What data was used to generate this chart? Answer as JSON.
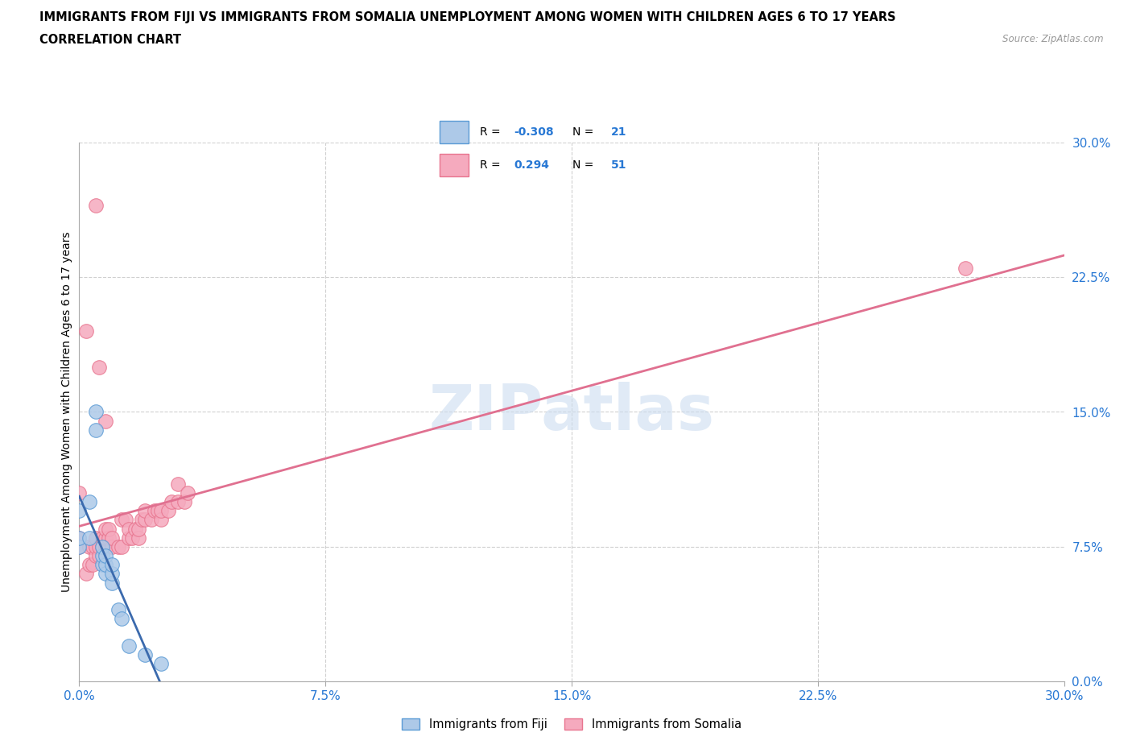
{
  "title_line1": "IMMIGRANTS FROM FIJI VS IMMIGRANTS FROM SOMALIA UNEMPLOYMENT AMONG WOMEN WITH CHILDREN AGES 6 TO 17 YEARS",
  "title_line2": "CORRELATION CHART",
  "source": "Source: ZipAtlas.com",
  "ylabel": "Unemployment Among Women with Children Ages 6 to 17 years",
  "x_min": 0.0,
  "x_max": 0.3,
  "y_min": 0.0,
  "y_max": 0.3,
  "grid_color": "#d0d0d0",
  "watermark": "ZIPatlas",
  "fiji_color": "#adc9e8",
  "somalia_color": "#f5aabe",
  "fiji_edge_color": "#5b9bd5",
  "somalia_edge_color": "#e8758f",
  "fiji_R": -0.308,
  "fiji_N": 21,
  "somalia_R": 0.294,
  "somalia_N": 51,
  "fiji_line_color": "#3b6aad",
  "somalia_line_color": "#e07090",
  "tick_color": "#2878d4",
  "fiji_x": [
    0.0,
    0.0,
    0.0,
    0.003,
    0.003,
    0.005,
    0.005,
    0.007,
    0.007,
    0.007,
    0.008,
    0.008,
    0.008,
    0.01,
    0.01,
    0.01,
    0.012,
    0.013,
    0.015,
    0.02,
    0.025
  ],
  "fiji_y": [
    0.075,
    0.08,
    0.095,
    0.08,
    0.1,
    0.14,
    0.15,
    0.065,
    0.07,
    0.075,
    0.06,
    0.065,
    0.07,
    0.055,
    0.06,
    0.065,
    0.04,
    0.035,
    0.02,
    0.015,
    0.01
  ],
  "somalia_x": [
    0.0,
    0.0,
    0.0,
    0.002,
    0.003,
    0.003,
    0.004,
    0.004,
    0.005,
    0.005,
    0.005,
    0.006,
    0.006,
    0.007,
    0.007,
    0.008,
    0.008,
    0.008,
    0.009,
    0.009,
    0.01,
    0.01,
    0.012,
    0.013,
    0.013,
    0.014,
    0.015,
    0.015,
    0.016,
    0.017,
    0.018,
    0.018,
    0.019,
    0.02,
    0.02,
    0.022,
    0.023,
    0.024,
    0.025,
    0.025,
    0.027,
    0.028,
    0.03,
    0.03,
    0.032,
    0.033,
    0.27,
    0.002,
    0.005,
    0.006,
    0.008
  ],
  "somalia_y": [
    0.075,
    0.08,
    0.105,
    0.06,
    0.065,
    0.075,
    0.065,
    0.075,
    0.07,
    0.075,
    0.08,
    0.07,
    0.075,
    0.075,
    0.08,
    0.075,
    0.08,
    0.085,
    0.08,
    0.085,
    0.075,
    0.08,
    0.075,
    0.075,
    0.09,
    0.09,
    0.08,
    0.085,
    0.08,
    0.085,
    0.08,
    0.085,
    0.09,
    0.09,
    0.095,
    0.09,
    0.095,
    0.095,
    0.09,
    0.095,
    0.095,
    0.1,
    0.1,
    0.11,
    0.1,
    0.105,
    0.23,
    0.195,
    0.265,
    0.175,
    0.145
  ]
}
